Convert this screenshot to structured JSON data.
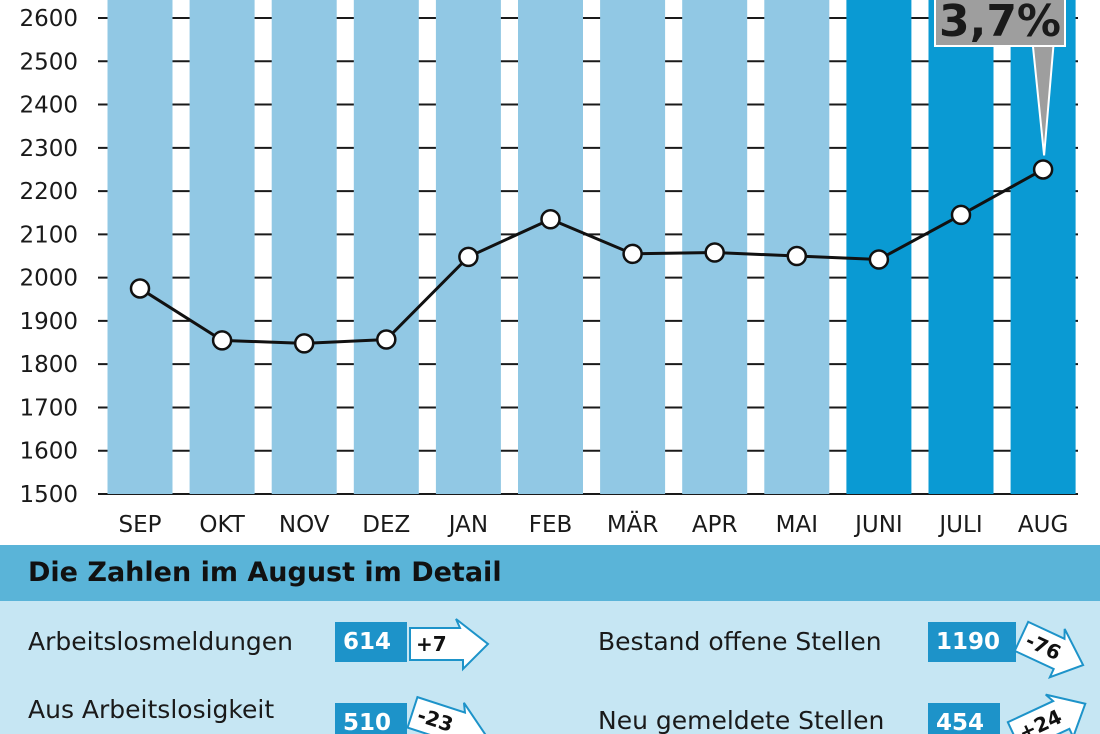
{
  "chart_data": {
    "type": "bar+line",
    "categories": [
      "SEP",
      "OKT",
      "NOV",
      "DEZ",
      "JAN",
      "FEB",
      "MÄR",
      "APR",
      "MAI",
      "JUNI",
      "JULI",
      "AUG"
    ],
    "values": [
      1975,
      1855,
      1848,
      1857,
      2048,
      2135,
      2055,
      2058,
      2050,
      2042,
      2145,
      2250
    ],
    "highlighted_categories": [
      "JUNI",
      "JULI",
      "AUG"
    ],
    "ylim": [
      1500,
      2600
    ],
    "yticks": [
      "1500",
      "1600",
      "1700",
      "1800",
      "1900",
      "2000",
      "2100",
      "2200",
      "2300",
      "2400",
      "2500",
      "2600"
    ],
    "grid": true,
    "annotation": {
      "text": "3,7%",
      "category": "AUG"
    },
    "colors": {
      "bar": "#91c8e4",
      "bar_highlight": "#0a9ad3",
      "line": "#111111",
      "marker_fill": "#ffffff",
      "callout": "#9e9e9e"
    }
  },
  "detail": {
    "title": "Die Zahlen im August im Detail",
    "rows": [
      {
        "label": "Arbeitslosmeldungen",
        "value": "614",
        "change": "+7"
      },
      {
        "label": "Aus Arbeitslosigkeit",
        "value": "510",
        "change": "-23"
      },
      {
        "label": "Bestand offene Stellen",
        "value": "1190",
        "change": "-76"
      },
      {
        "label": "Neu gemeldete Stellen",
        "value": "454",
        "change": "+24"
      }
    ],
    "colors": {
      "header": "#5ab4d8",
      "body": "#c6e6f3",
      "value_box": "#1d93c9"
    }
  }
}
